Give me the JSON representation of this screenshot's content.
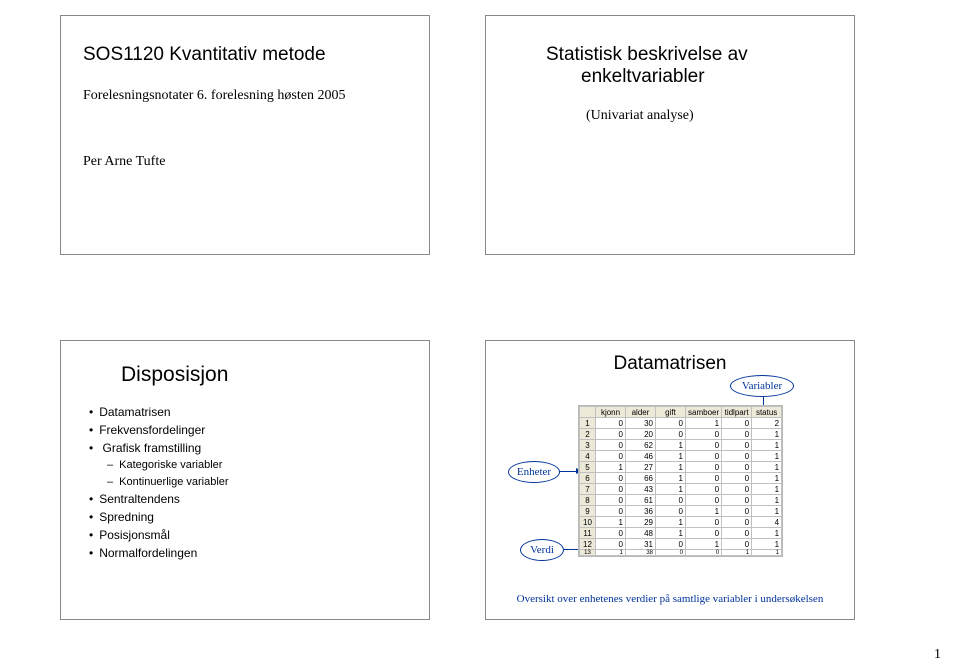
{
  "slide1": {
    "title": "SOS1120 Kvantitativ metode",
    "line1": "Forelesningsnotater 6. forelesning høsten 2005",
    "line2": "Per Arne Tufte"
  },
  "slide2": {
    "title_l1": "Statistisk beskrivelse av",
    "title_l2": "enkeltvariabler",
    "sub": "(Univariat analyse)"
  },
  "slide3": {
    "title": "Disposisjon",
    "items": {
      "i0": "Datamatrisen",
      "i1": "Frekvensfordelinger",
      "i2": "Grafisk framstilling",
      "i2a": "Kategoriske variabler",
      "i2b": "Kontinuerlige variabler",
      "i3": "Sentraltendens",
      "i4": "Spredning",
      "i5": "Posisjonsmål",
      "i6": "Normalfordelingen"
    }
  },
  "slide4": {
    "title": "Datamatrisen",
    "labels": {
      "variabler": "Variabler",
      "enheter": "Enheter",
      "verdi": "Verdi"
    },
    "caption": "Oversikt over enhetenes verdier på samtlige variabler i undersøkelsen",
    "table": {
      "cols": [
        "kjonn",
        "alder",
        "gift",
        "samboer",
        "tidlpart",
        "status"
      ],
      "rows": [
        {
          "n": "1",
          "v": [
            "0",
            "30",
            "0",
            "1",
            "0",
            "2"
          ]
        },
        {
          "n": "2",
          "v": [
            "0",
            "20",
            "0",
            "0",
            "0",
            "1"
          ]
        },
        {
          "n": "3",
          "v": [
            "0",
            "62",
            "1",
            "0",
            "0",
            "1"
          ]
        },
        {
          "n": "4",
          "v": [
            "0",
            "46",
            "1",
            "0",
            "0",
            "1"
          ]
        },
        {
          "n": "5",
          "v": [
            "1",
            "27",
            "1",
            "0",
            "0",
            "1"
          ]
        },
        {
          "n": "6",
          "v": [
            "0",
            "66",
            "1",
            "0",
            "0",
            "1"
          ]
        },
        {
          "n": "7",
          "v": [
            "0",
            "43",
            "1",
            "0",
            "0",
            "1"
          ]
        },
        {
          "n": "8",
          "v": [
            "0",
            "61",
            "0",
            "0",
            "0",
            "1"
          ]
        },
        {
          "n": "9",
          "v": [
            "0",
            "36",
            "0",
            "1",
            "0",
            "1"
          ]
        },
        {
          "n": "10",
          "v": [
            "1",
            "29",
            "1",
            "0",
            "0",
            "4"
          ]
        },
        {
          "n": "11",
          "v": [
            "0",
            "48",
            "1",
            "0",
            "0",
            "1"
          ]
        },
        {
          "n": "12",
          "v": [
            "0",
            "31",
            "0",
            "1",
            "0",
            "1"
          ]
        },
        {
          "n": "13",
          "v": [
            "1",
            "38",
            "0",
            "0",
            "1",
            "1"
          ]
        }
      ]
    }
  },
  "page": "1"
}
